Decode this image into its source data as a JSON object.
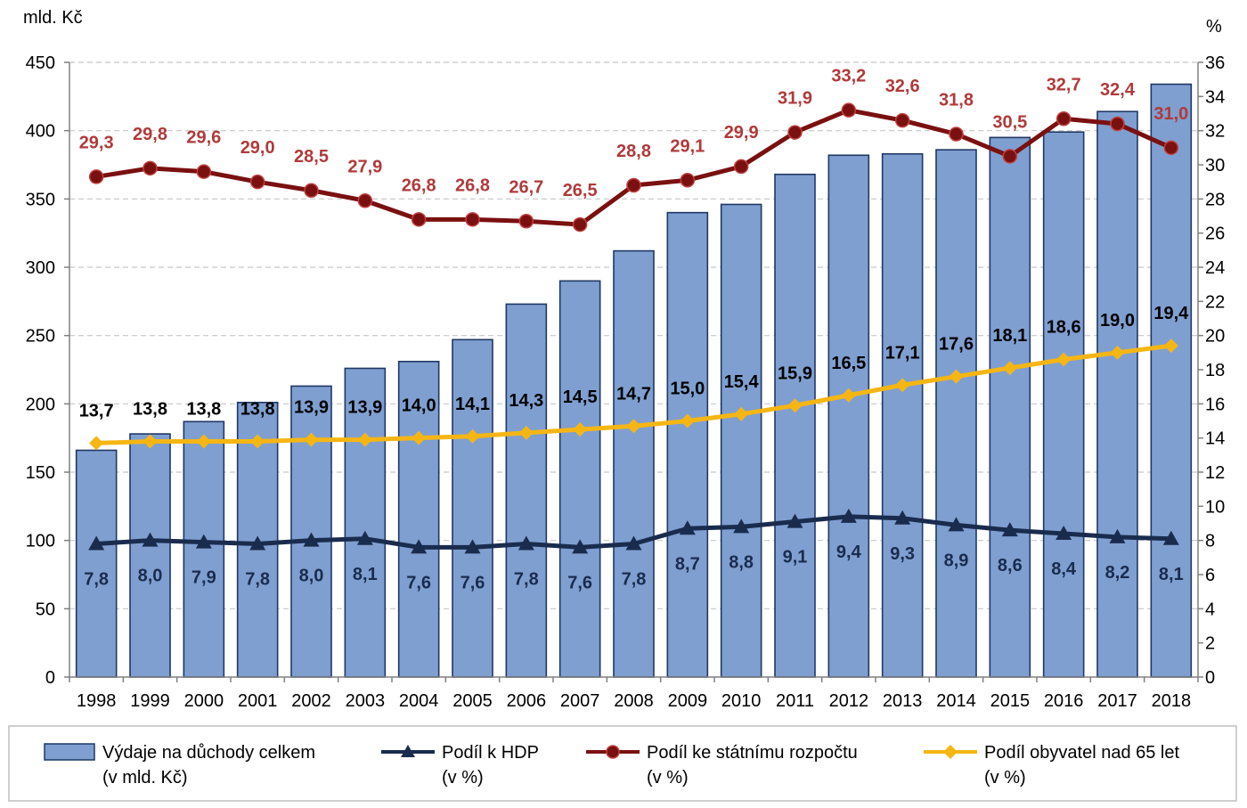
{
  "chart_data": {
    "type": "bar",
    "categories": [
      "1998",
      "1999",
      "2000",
      "2001",
      "2002",
      "2003",
      "2004",
      "2005",
      "2006",
      "2007",
      "2008",
      "2009",
      "2010",
      "2011",
      "2012",
      "2013",
      "2014",
      "2015",
      "2016",
      "2017",
      "2018"
    ],
    "left_axis": {
      "unit": "mld. Kč",
      "range": [
        0,
        450
      ],
      "ticks": [
        "0",
        "50",
        "100",
        "150",
        "200",
        "250",
        "300",
        "350",
        "400",
        "450"
      ]
    },
    "right_axis": {
      "unit": "%",
      "range": [
        0,
        36
      ],
      "ticks": [
        "0",
        "2",
        "4",
        "6",
        "8",
        "10",
        "12",
        "14",
        "16",
        "18",
        "20",
        "22",
        "24",
        "26",
        "28",
        "30",
        "32",
        "34",
        "36"
      ]
    },
    "grid": "horizontal dashed",
    "legend_position": "bottom",
    "series": [
      {
        "name": "Výdaje na důchody celkem",
        "name_line2": "(v mld. Kč)",
        "type": "bar",
        "axis": "left",
        "color": "#7f9fd0",
        "values": [
          166,
          178,
          187,
          201,
          213,
          226,
          231,
          247,
          273,
          290,
          312,
          340,
          346,
          368,
          382,
          383,
          386,
          395,
          399,
          414,
          434
        ]
      },
      {
        "name": "Podíl k HDP",
        "name_line2": "(v %)",
        "type": "line",
        "marker": "triangle",
        "axis": "right",
        "color": "#1a2c4e",
        "label_color": "#1a2c4e",
        "values": [
          7.8,
          8.0,
          7.9,
          7.8,
          8.0,
          8.1,
          7.6,
          7.6,
          7.8,
          7.6,
          7.8,
          8.7,
          8.8,
          9.1,
          9.4,
          9.3,
          8.9,
          8.6,
          8.4,
          8.2,
          8.1
        ],
        "labels": [
          "7,8",
          "8,0",
          "7,9",
          "7,8",
          "8,0",
          "8,1",
          "7,6",
          "7,6",
          "7,8",
          "7,6",
          "7,8",
          "8,7",
          "8,8",
          "9,1",
          "9,4",
          "9,3",
          "8,9",
          "8,6",
          "8,4",
          "8,2",
          "8,1"
        ]
      },
      {
        "name": "Podíl ke státnímu rozpočtu",
        "name_line2": "(v %)",
        "type": "line",
        "marker": "circle",
        "axis": "right",
        "color": "#7a1010",
        "label_color": "#b03a3a",
        "values": [
          29.3,
          29.8,
          29.6,
          29.0,
          28.5,
          27.9,
          26.8,
          26.8,
          26.7,
          26.5,
          28.8,
          29.1,
          29.9,
          31.9,
          33.2,
          32.6,
          31.8,
          30.5,
          32.7,
          32.4,
          31.0
        ],
        "labels": [
          "29,3",
          "29,8",
          "29,6",
          "29,0",
          "28,5",
          "27,9",
          "26,8",
          "26,8",
          "26,7",
          "26,5",
          "28,8",
          "29,1",
          "29,9",
          "31,9",
          "33,2",
          "32,6",
          "31,8",
          "30,5",
          "32,7",
          "32,4",
          "31,0"
        ]
      },
      {
        "name": "Podíl obyvatel nad 65 let",
        "name_line2": "(v %)",
        "type": "line",
        "marker": "diamond",
        "axis": "right",
        "color": "#f5b614",
        "label_color": "#000000",
        "values": [
          13.7,
          13.8,
          13.8,
          13.8,
          13.9,
          13.9,
          14.0,
          14.1,
          14.3,
          14.5,
          14.7,
          15.0,
          15.4,
          15.9,
          16.5,
          17.1,
          17.6,
          18.1,
          18.6,
          19.0,
          19.4
        ],
        "labels": [
          "13,7",
          "13,8",
          "13,8",
          "13,8",
          "13,9",
          "13,9",
          "14,0",
          "14,1",
          "14,3",
          "14,5",
          "14,7",
          "15,0",
          "15,4",
          "15,9",
          "16,5",
          "17,1",
          "17,6",
          "18,1",
          "18,6",
          "19,0",
          "19,4"
        ]
      }
    ]
  }
}
